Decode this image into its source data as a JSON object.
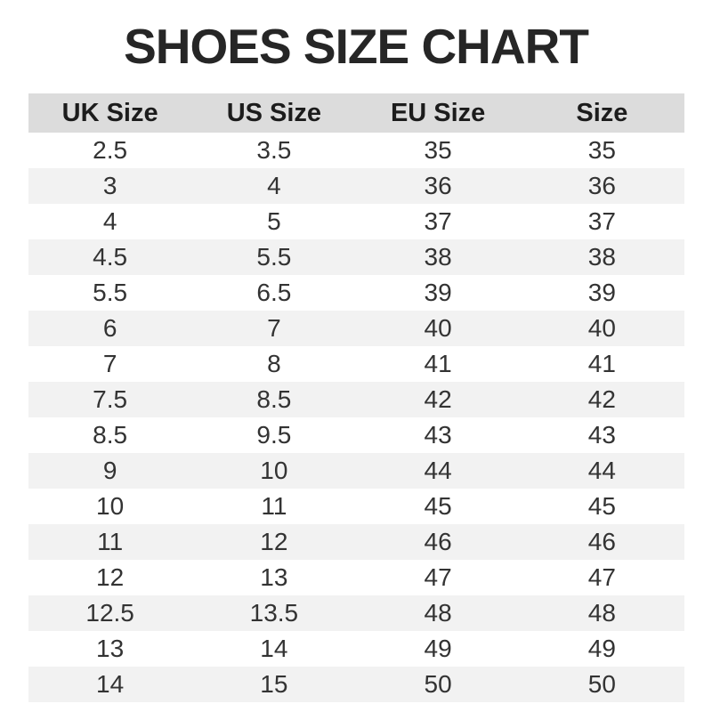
{
  "title": "SHOES SIZE CHART",
  "chart_data": {
    "type": "table",
    "title": "SHOES SIZE CHART",
    "columns": [
      "UK Size",
      "US Size",
      "EU Size",
      "Size"
    ],
    "rows": [
      [
        "2.5",
        "3.5",
        "35",
        "35"
      ],
      [
        "3",
        "4",
        "36",
        "36"
      ],
      [
        "4",
        "5",
        "37",
        "37"
      ],
      [
        "4.5",
        "5.5",
        "38",
        "38"
      ],
      [
        "5.5",
        "6.5",
        "39",
        "39"
      ],
      [
        "6",
        "7",
        "40",
        "40"
      ],
      [
        "7",
        "8",
        "41",
        "41"
      ],
      [
        "7.5",
        "8.5",
        "42",
        "42"
      ],
      [
        "8.5",
        "9.5",
        "43",
        "43"
      ],
      [
        "9",
        "10",
        "44",
        "44"
      ],
      [
        "10",
        "11",
        "45",
        "45"
      ],
      [
        "11",
        "12",
        "46",
        "46"
      ],
      [
        "12",
        "13",
        "47",
        "47"
      ],
      [
        "12.5",
        "13.5",
        "48",
        "48"
      ],
      [
        "13",
        "14",
        "49",
        "49"
      ],
      [
        "14",
        "15",
        "50",
        "50"
      ]
    ],
    "layout": {
      "header_row_shaded": true,
      "zebra_striping": true,
      "first_data_row_background": "white",
      "grid_lines": false
    }
  },
  "colors": {
    "header_bg": "#dcdcdc",
    "row_alt_bg": "#f2f2f2",
    "row_bg": "#ffffff",
    "title_text": "#262626",
    "header_text": "#1c1c1c",
    "cell_text": "#333333"
  }
}
